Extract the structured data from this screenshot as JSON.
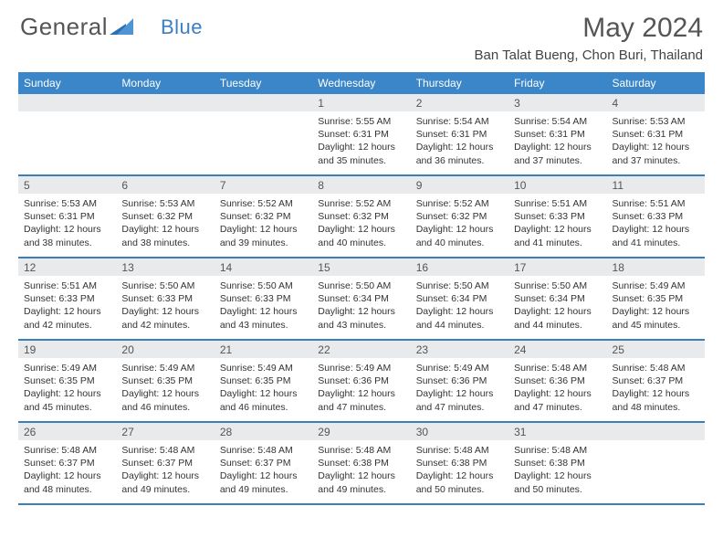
{
  "logo": {
    "text1": "General",
    "text2": "Blue"
  },
  "title": "May 2024",
  "location": "Ban Talat Bueng, Chon Buri, Thailand",
  "days": [
    "Sunday",
    "Monday",
    "Tuesday",
    "Wednesday",
    "Thursday",
    "Friday",
    "Saturday"
  ],
  "colors": {
    "header_bg": "#3a86c8",
    "header_text": "#ffffff",
    "daynum_bg": "#e9eaec",
    "border": "#3a7fb8",
    "logo_blue": "#3a7fc4",
    "body_text": "#333333"
  },
  "weeks": [
    [
      {
        "n": "",
        "sr": "",
        "ss": "",
        "dl": ""
      },
      {
        "n": "",
        "sr": "",
        "ss": "",
        "dl": ""
      },
      {
        "n": "",
        "sr": "",
        "ss": "",
        "dl": ""
      },
      {
        "n": "1",
        "sr": "Sunrise: 5:55 AM",
        "ss": "Sunset: 6:31 PM",
        "dl": "Daylight: 12 hours and 35 minutes."
      },
      {
        "n": "2",
        "sr": "Sunrise: 5:54 AM",
        "ss": "Sunset: 6:31 PM",
        "dl": "Daylight: 12 hours and 36 minutes."
      },
      {
        "n": "3",
        "sr": "Sunrise: 5:54 AM",
        "ss": "Sunset: 6:31 PM",
        "dl": "Daylight: 12 hours and 37 minutes."
      },
      {
        "n": "4",
        "sr": "Sunrise: 5:53 AM",
        "ss": "Sunset: 6:31 PM",
        "dl": "Daylight: 12 hours and 37 minutes."
      }
    ],
    [
      {
        "n": "5",
        "sr": "Sunrise: 5:53 AM",
        "ss": "Sunset: 6:31 PM",
        "dl": "Daylight: 12 hours and 38 minutes."
      },
      {
        "n": "6",
        "sr": "Sunrise: 5:53 AM",
        "ss": "Sunset: 6:32 PM",
        "dl": "Daylight: 12 hours and 38 minutes."
      },
      {
        "n": "7",
        "sr": "Sunrise: 5:52 AM",
        "ss": "Sunset: 6:32 PM",
        "dl": "Daylight: 12 hours and 39 minutes."
      },
      {
        "n": "8",
        "sr": "Sunrise: 5:52 AM",
        "ss": "Sunset: 6:32 PM",
        "dl": "Daylight: 12 hours and 40 minutes."
      },
      {
        "n": "9",
        "sr": "Sunrise: 5:52 AM",
        "ss": "Sunset: 6:32 PM",
        "dl": "Daylight: 12 hours and 40 minutes."
      },
      {
        "n": "10",
        "sr": "Sunrise: 5:51 AM",
        "ss": "Sunset: 6:33 PM",
        "dl": "Daylight: 12 hours and 41 minutes."
      },
      {
        "n": "11",
        "sr": "Sunrise: 5:51 AM",
        "ss": "Sunset: 6:33 PM",
        "dl": "Daylight: 12 hours and 41 minutes."
      }
    ],
    [
      {
        "n": "12",
        "sr": "Sunrise: 5:51 AM",
        "ss": "Sunset: 6:33 PM",
        "dl": "Daylight: 12 hours and 42 minutes."
      },
      {
        "n": "13",
        "sr": "Sunrise: 5:50 AM",
        "ss": "Sunset: 6:33 PM",
        "dl": "Daylight: 12 hours and 42 minutes."
      },
      {
        "n": "14",
        "sr": "Sunrise: 5:50 AM",
        "ss": "Sunset: 6:33 PM",
        "dl": "Daylight: 12 hours and 43 minutes."
      },
      {
        "n": "15",
        "sr": "Sunrise: 5:50 AM",
        "ss": "Sunset: 6:34 PM",
        "dl": "Daylight: 12 hours and 43 minutes."
      },
      {
        "n": "16",
        "sr": "Sunrise: 5:50 AM",
        "ss": "Sunset: 6:34 PM",
        "dl": "Daylight: 12 hours and 44 minutes."
      },
      {
        "n": "17",
        "sr": "Sunrise: 5:50 AM",
        "ss": "Sunset: 6:34 PM",
        "dl": "Daylight: 12 hours and 44 minutes."
      },
      {
        "n": "18",
        "sr": "Sunrise: 5:49 AM",
        "ss": "Sunset: 6:35 PM",
        "dl": "Daylight: 12 hours and 45 minutes."
      }
    ],
    [
      {
        "n": "19",
        "sr": "Sunrise: 5:49 AM",
        "ss": "Sunset: 6:35 PM",
        "dl": "Daylight: 12 hours and 45 minutes."
      },
      {
        "n": "20",
        "sr": "Sunrise: 5:49 AM",
        "ss": "Sunset: 6:35 PM",
        "dl": "Daylight: 12 hours and 46 minutes."
      },
      {
        "n": "21",
        "sr": "Sunrise: 5:49 AM",
        "ss": "Sunset: 6:35 PM",
        "dl": "Daylight: 12 hours and 46 minutes."
      },
      {
        "n": "22",
        "sr": "Sunrise: 5:49 AM",
        "ss": "Sunset: 6:36 PM",
        "dl": "Daylight: 12 hours and 47 minutes."
      },
      {
        "n": "23",
        "sr": "Sunrise: 5:49 AM",
        "ss": "Sunset: 6:36 PM",
        "dl": "Daylight: 12 hours and 47 minutes."
      },
      {
        "n": "24",
        "sr": "Sunrise: 5:48 AM",
        "ss": "Sunset: 6:36 PM",
        "dl": "Daylight: 12 hours and 47 minutes."
      },
      {
        "n": "25",
        "sr": "Sunrise: 5:48 AM",
        "ss": "Sunset: 6:37 PM",
        "dl": "Daylight: 12 hours and 48 minutes."
      }
    ],
    [
      {
        "n": "26",
        "sr": "Sunrise: 5:48 AM",
        "ss": "Sunset: 6:37 PM",
        "dl": "Daylight: 12 hours and 48 minutes."
      },
      {
        "n": "27",
        "sr": "Sunrise: 5:48 AM",
        "ss": "Sunset: 6:37 PM",
        "dl": "Daylight: 12 hours and 49 minutes."
      },
      {
        "n": "28",
        "sr": "Sunrise: 5:48 AM",
        "ss": "Sunset: 6:37 PM",
        "dl": "Daylight: 12 hours and 49 minutes."
      },
      {
        "n": "29",
        "sr": "Sunrise: 5:48 AM",
        "ss": "Sunset: 6:38 PM",
        "dl": "Daylight: 12 hours and 49 minutes."
      },
      {
        "n": "30",
        "sr": "Sunrise: 5:48 AM",
        "ss": "Sunset: 6:38 PM",
        "dl": "Daylight: 12 hours and 50 minutes."
      },
      {
        "n": "31",
        "sr": "Sunrise: 5:48 AM",
        "ss": "Sunset: 6:38 PM",
        "dl": "Daylight: 12 hours and 50 minutes."
      },
      {
        "n": "",
        "sr": "",
        "ss": "",
        "dl": ""
      }
    ]
  ]
}
